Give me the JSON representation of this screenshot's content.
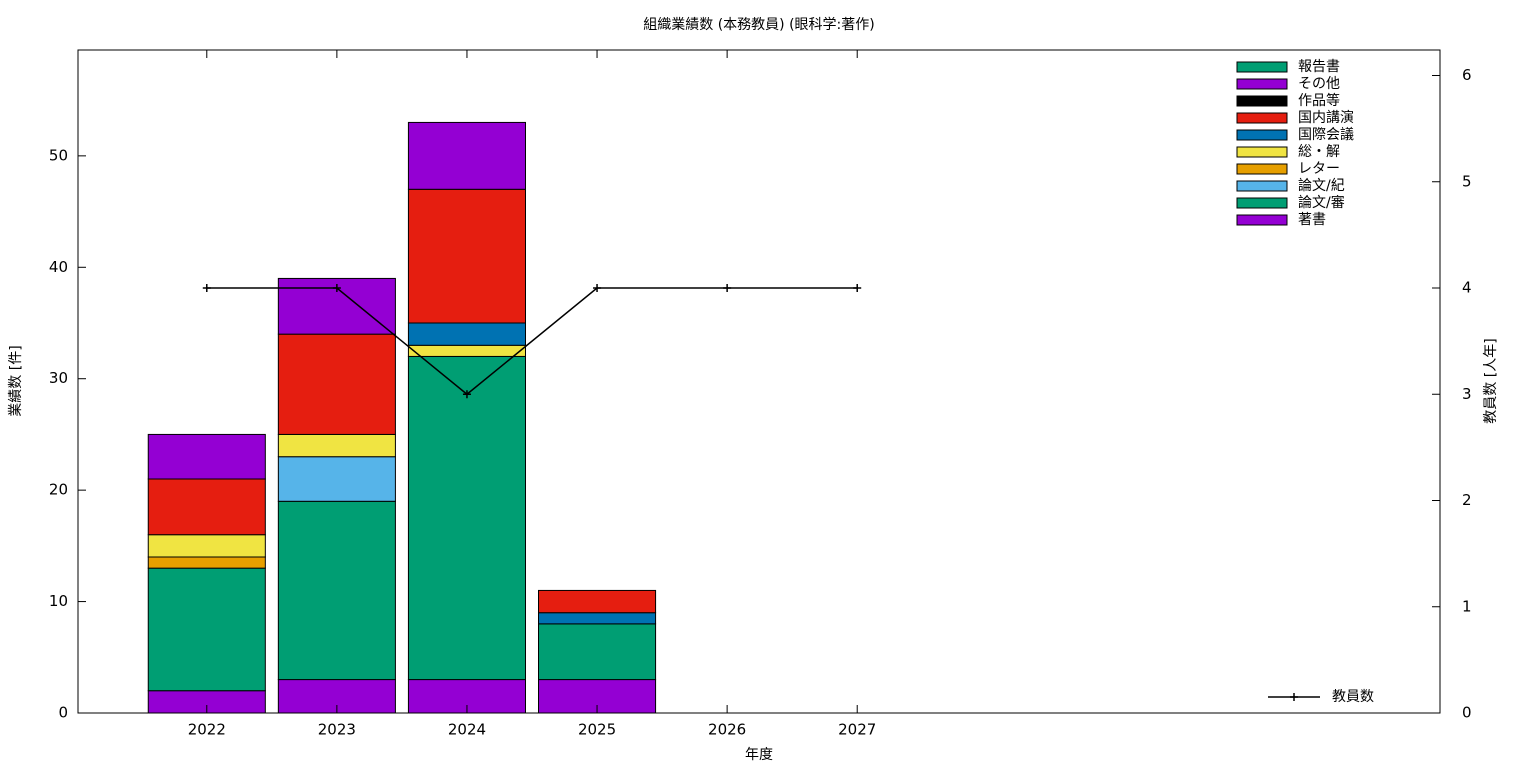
{
  "chart_data": {
    "type": "bar",
    "title": "組織業績数 (本務教員) (眼科学:著作)",
    "xlabel": "年度",
    "ylabel": "業績数 [件]",
    "y2label": "教員数 [人年]",
    "x": [
      2022,
      2023,
      2024,
      2025,
      2026,
      2027
    ],
    "xlim": [
      2021.01,
      2031.48
    ],
    "xticks": [
      2022,
      2023,
      2024,
      2025,
      2026,
      2027
    ],
    "ylim": [
      0,
      59.5
    ],
    "yticks": [
      0,
      10,
      20,
      30,
      40,
      50
    ],
    "y2lim": [
      0,
      6.24
    ],
    "y2ticks": [
      0,
      1,
      2,
      3,
      4,
      5,
      6
    ],
    "stacked": true,
    "series": [
      {
        "name": "著書",
        "color": "#9400d3",
        "values": [
          2,
          3,
          3,
          3,
          null,
          null
        ]
      },
      {
        "name": "論文/審",
        "color": "#009e73",
        "values": [
          11,
          16,
          29,
          5,
          null,
          null
        ]
      },
      {
        "name": "論文/紀",
        "color": "#56b4e9",
        "values": [
          0,
          4,
          0,
          0,
          null,
          null
        ]
      },
      {
        "name": "レター",
        "color": "#e69f00",
        "values": [
          1,
          0,
          0,
          0,
          null,
          null
        ]
      },
      {
        "name": "総・解",
        "color": "#f0e442",
        "values": [
          2,
          2,
          1,
          0,
          null,
          null
        ]
      },
      {
        "name": "国際会議",
        "color": "#0072b2",
        "values": [
          0,
          0,
          2,
          1,
          null,
          null
        ]
      },
      {
        "name": "国内講演",
        "color": "#e51e10",
        "values": [
          5,
          9,
          12,
          2,
          null,
          null
        ]
      },
      {
        "name": "作品等",
        "color": "#000000",
        "values": [
          0,
          0,
          0,
          0,
          null,
          null
        ]
      },
      {
        "name": "その他",
        "color": "#9400d3",
        "values": [
          4,
          5,
          6,
          0,
          null,
          null
        ]
      },
      {
        "name": "報告書",
        "color": "#009e73",
        "values": [
          0,
          0,
          0,
          0,
          null,
          null
        ]
      },
      {
        "name": "教員数",
        "type": "line",
        "axis": "y2",
        "color": "#000000",
        "values": [
          4,
          4,
          3,
          4,
          4,
          4
        ]
      }
    ]
  }
}
